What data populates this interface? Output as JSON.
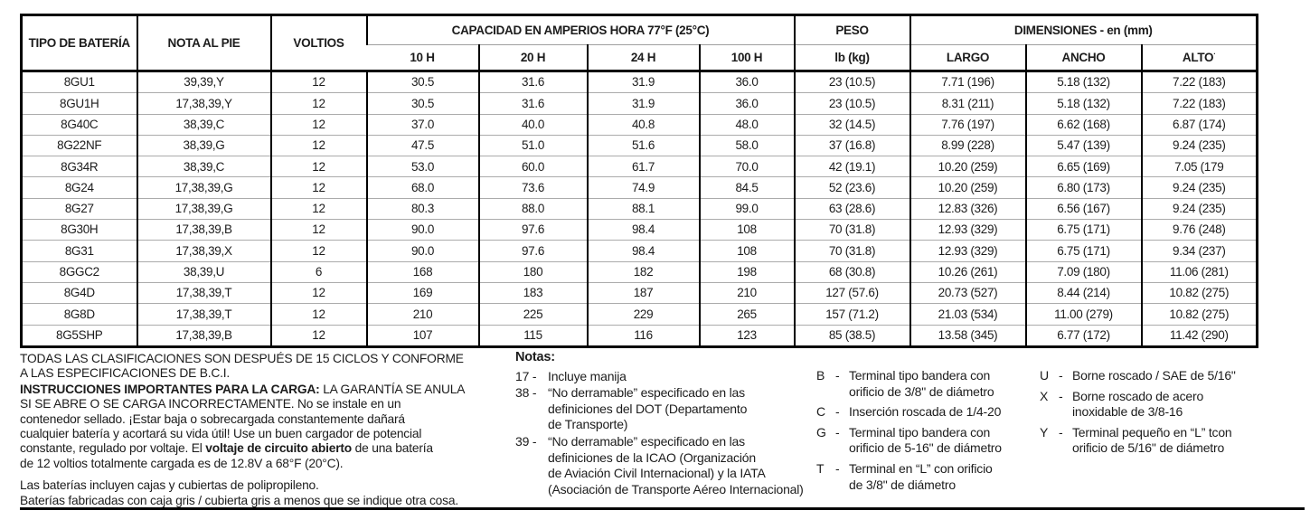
{
  "table": {
    "headers": {
      "tipo": "TIPO DE BATERÍA",
      "nota": "NOTA AL PIE",
      "voltios": "VOLTIOS",
      "capacidad_group": "CAPACIDAD EN AMPERIOS HORA 77°F (25°C)",
      "cap_cols": [
        "10 H",
        "20 H",
        "24 H",
        "100 H"
      ],
      "peso_group": "PESO",
      "peso_sub": "lb (kg)",
      "dims_group": "DIMENSIONES - en (mm)",
      "largo": "LARGO",
      "ancho": "ANCHO",
      "alto": "ALTO",
      "alto_marker": "·"
    },
    "rows": [
      {
        "tipo": "8GU1",
        "nota": "39,39,Y",
        "voltios": "12",
        "c10": "30.5",
        "c20": "31.6",
        "c24": "31.9",
        "c100": "36.0",
        "peso": "23 (10.5)",
        "largo": "7.71 (196)",
        "ancho": "5.18 (132)",
        "alto": "7.22 (183)"
      },
      {
        "tipo": "8GU1H",
        "nota": "17,38,39,Y",
        "voltios": "12",
        "c10": "30.5",
        "c20": "31.6",
        "c24": "31.9",
        "c100": "36.0",
        "peso": "23 (10.5)",
        "largo": "8.31 (211)",
        "ancho": "5.18 (132)",
        "alto": "7.22 (183)"
      },
      {
        "tipo": "8G40C",
        "nota": "38,39,C",
        "voltios": "12",
        "c10": "37.0",
        "c20": "40.0",
        "c24": "40.8",
        "c100": "48.0",
        "peso": "32 (14.5)",
        "largo": "7.76 (197)",
        "ancho": "6.62 (168)",
        "alto": "6.87 (174)"
      },
      {
        "tipo": "8G22NF",
        "nota": "38,39,G",
        "voltios": "12",
        "c10": "47.5",
        "c20": "51.0",
        "c24": "51.6",
        "c100": "58.0",
        "peso": "37 (16.8)",
        "largo": "8.99 (228)",
        "ancho": "5.47 (139)",
        "alto": "9.24 (235)"
      },
      {
        "tipo": "8G34R",
        "nota": "38,39,C",
        "voltios": "12",
        "c10": "53.0",
        "c20": "60.0",
        "c24": "61.7",
        "c100": "70.0",
        "peso": "42 (19.1)",
        "largo": "10.20 (259)",
        "ancho": "6.65 (169)",
        "alto": "7.05 (179"
      },
      {
        "tipo": "8G24",
        "nota": "17,38,39,G",
        "voltios": "12",
        "c10": "68.0",
        "c20": "73.6",
        "c24": "74.9",
        "c100": "84.5",
        "peso": "52 (23.6)",
        "largo": "10.20 (259)",
        "ancho": "6.80 (173)",
        "alto": "9.24 (235)"
      },
      {
        "tipo": "8G27",
        "nota": "17,38,39,G",
        "voltios": "12",
        "c10": "80.3",
        "c20": "88.0",
        "c24": "88.1",
        "c100": "99.0",
        "peso": "63 (28.6)",
        "largo": "12.83 (326)",
        "ancho": "6.56 (167)",
        "alto": "9.24 (235)"
      },
      {
        "tipo": "8G30H",
        "nota": "17,38,39,B",
        "voltios": "12",
        "c10": "90.0",
        "c20": "97.6",
        "c24": "98.4",
        "c100": "108",
        "peso": "70 (31.8)",
        "largo": "12.93 (329)",
        "ancho": "6.75 (171)",
        "alto": "9.76 (248)"
      },
      {
        "tipo": "8G31",
        "nota": "17,38,39,X",
        "voltios": "12",
        "c10": "90.0",
        "c20": "97.6",
        "c24": "98.4",
        "c100": "108",
        "peso": "70 (31.8)",
        "largo": "12.93 (329)",
        "ancho": "6.75 (171)",
        "alto": "9.34 (237)"
      },
      {
        "tipo": "8GGC2",
        "nota": "38,39,U",
        "voltios": "6",
        "c10": "168",
        "c20": "180",
        "c24": "182",
        "c100": "198",
        "peso": "68 (30.8)",
        "largo": "10.26 (261)",
        "ancho": "7.09 (180)",
        "alto": "11.06 (281)"
      },
      {
        "tipo": "8G4D",
        "nota": "17,38,39,T",
        "voltios": "12",
        "c10": "169",
        "c20": "183",
        "c24": "187",
        "c100": "210",
        "peso": "127 (57.6)",
        "largo": "20.73 (527)",
        "ancho": "8.44 (214)",
        "alto": "10.82 (275)"
      },
      {
        "tipo": "8G8D",
        "nota": "17,38,39,T",
        "voltios": "12",
        "c10": "210",
        "c20": "225",
        "c24": "229",
        "c100": "265",
        "peso": "157 (71.2)",
        "largo": "21.03 (534)",
        "ancho": "11.00 (279)",
        "alto": "10.82 (275)"
      },
      {
        "tipo": "8G5SHP",
        "nota": "17,38,39,B",
        "voltios": "12",
        "c10": "107",
        "c20": "115",
        "c24": "116",
        "c100": "123",
        "peso": "85 (38.5)",
        "largo": "13.58 (345)",
        "ancho": "6.77 (172)",
        "alto": "11.42 (290)"
      }
    ]
  },
  "footnotes": {
    "ratings": "TODAS LAS CLASIFICACIONES SON DESPUÉS DE 15 CICLOS Y CONFORME\nA LAS ESPECIFICACIONES DE B.C.I.",
    "charging_bold_lead": "INSTRUCCIONES IMPORTANTES PARA LA CARGA:",
    "charging_part1": " LA GARANTÍA SE ANULA\nSI SE ABRE O SE CARGA INCORRECTAMENTE. No se instale en un\ncontenedor sellado. ¡Estar baja o sobrecargada constantemente dañará\ncualquier batería y acortará su vida útil! Use un buen cargador de potencial\nconstante, regulado por voltaje. El ",
    "charging_bold_mid": "voltaje de circuito abierto",
    "charging_part2": " de una batería\nde 12 voltios totalmente cargada es de 12.8V a 68°F (20°C).",
    "cases_line1": "Las baterías incluyen cajas y cubiertas de polipropileno.",
    "cases_line2": "Baterías fabricadas con caja gris / cubierta gris a menos que se indique otra cosa."
  },
  "notes": {
    "title": "Notas:",
    "sep": "-",
    "items": [
      {
        "num": "17",
        "text": "Incluye manija"
      },
      {
        "num": "38",
        "text": "“No derramable” especificado en las\ndefiniciones del DOT (Departamento\nde Transporte)"
      },
      {
        "num": "39",
        "text": "“No derramable” especificado en las\ndefiniciones de la ICAO (Organización\nde Aviación Civil Internacional) y la IATA\n(Asociación de Transporte Aéreo Internacional)"
      }
    ]
  },
  "terminal_legend": {
    "sep": "-",
    "col1": [
      {
        "code": "B",
        "text": "Terminal tipo bandera con\norificio de 3/8\" de diámetro"
      },
      {
        "code": "C",
        "text": "Inserción roscada de 1/4-20"
      },
      {
        "code": "G",
        "text": "Terminal tipo bandera con\norificio de 5-16\" de diámetro"
      },
      {
        "code": "T",
        "text": "Terminal en “L” con orificio\nde 3/8\" de diámetro"
      }
    ],
    "col2": [
      {
        "code": "U",
        "text": "Borne roscado / SAE de 5/16\""
      },
      {
        "code": "X",
        "text": "Borne roscado de acero\ninoxidable de 3/8-16"
      },
      {
        "code": "Y",
        "text": "Terminal pequeño en “L” tcon\norificio de 5/16\" de diámetro"
      }
    ]
  }
}
